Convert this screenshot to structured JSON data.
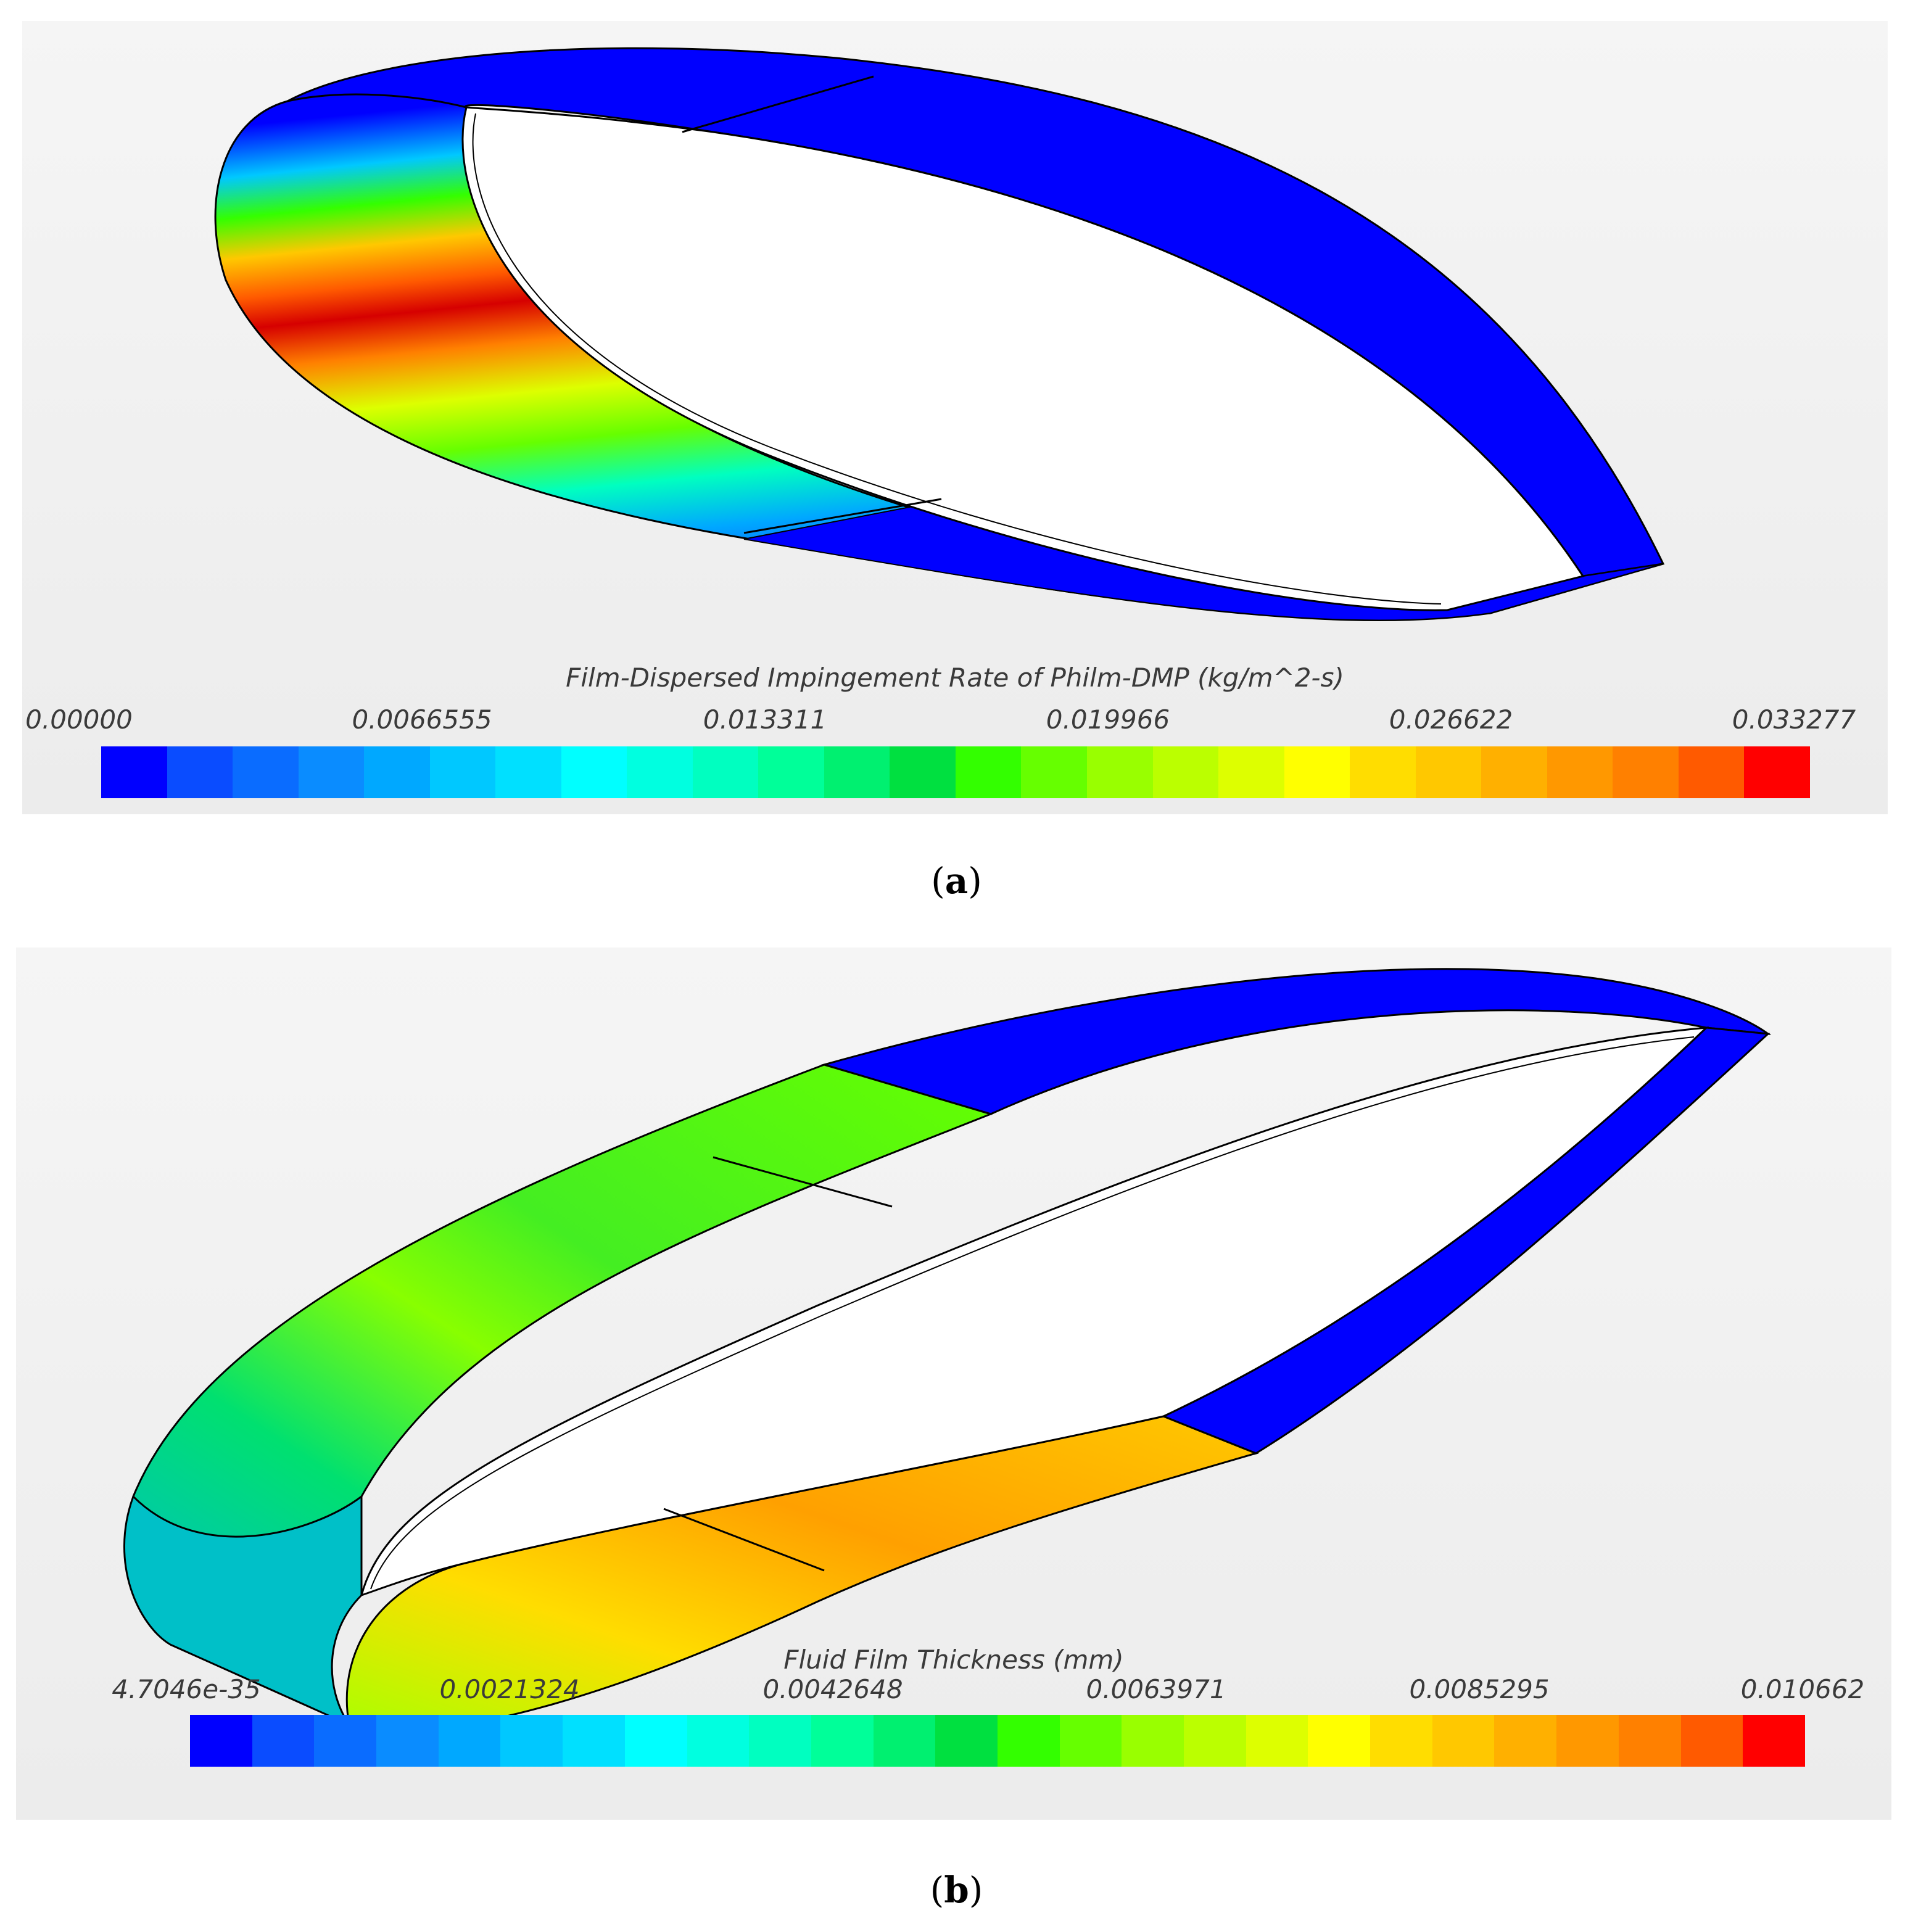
{
  "panels": [
    {
      "id": "a",
      "caption_letter": "a",
      "legend_title": "Film-Dispersed Impingement Rate of Philm-DMP (kg/m^2-s)",
      "ticks": [
        "0.00000",
        "0.0066555",
        "0.013311",
        "0.019966",
        "0.026622",
        "0.033277"
      ]
    },
    {
      "id": "b",
      "caption_letter": "b",
      "legend_title": "Fluid Film Thickness (mm)",
      "ticks": [
        "4.7046e-35",
        "0.0021324",
        "0.0042648",
        "0.0063971",
        "0.0085295",
        "0.010662"
      ]
    }
  ],
  "colormap": [
    "#0000ff",
    "#0a4cff",
    "#0a6cff",
    "#0a8cff",
    "#00a8ff",
    "#00c8ff",
    "#00e0ff",
    "#00ffff",
    "#00ffe0",
    "#00ffc0",
    "#00ff99",
    "#00f070",
    "#00e040",
    "#33ff00",
    "#66ff00",
    "#99ff00",
    "#bbff00",
    "#ddff00",
    "#ffff00",
    "#ffdd00",
    "#ffc800",
    "#ffb000",
    "#ff9800",
    "#ff8000",
    "#ff5a00",
    "#ff0000"
  ],
  "colors": {
    "background": "#f1f1f1",
    "wall": "#ffffff",
    "outline": "#000000"
  }
}
